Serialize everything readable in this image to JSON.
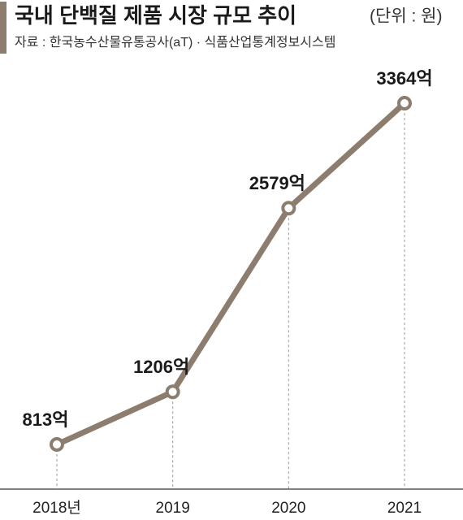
{
  "chart_data": {
    "type": "line",
    "title": "국내 단백질 제품 시장 규모 추이",
    "unit": "(단위 : 원)",
    "source": "자료 : 한국농수산물유통공사(aT) · 식품산업통계정보시스템",
    "categories": [
      "2018년",
      "2019",
      "2020",
      "2021"
    ],
    "values": [
      813,
      1206,
      2579,
      3364
    ],
    "value_labels": [
      "813억",
      "1206억",
      "2579억",
      "3364억"
    ],
    "color": "#8c7d6e"
  }
}
